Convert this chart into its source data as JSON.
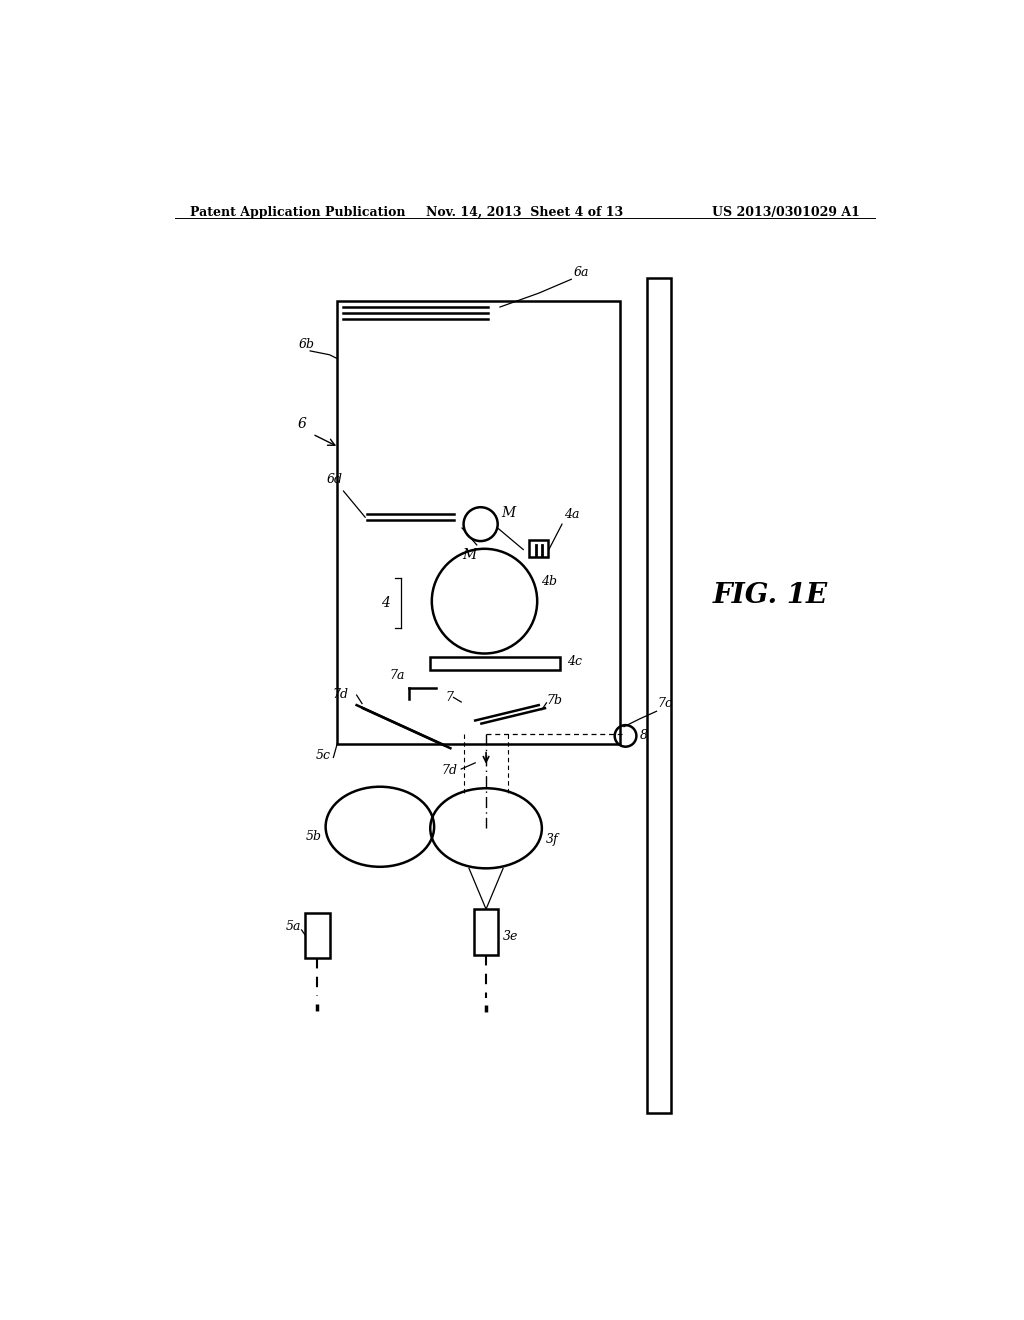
{
  "bg_color": "#ffffff",
  "header_left": "Patent Application Publication",
  "header_center": "Nov. 14, 2013  Sheet 4 of 13",
  "header_right": "US 2013/0301029 A1",
  "fig_label": "FIG. 1E"
}
